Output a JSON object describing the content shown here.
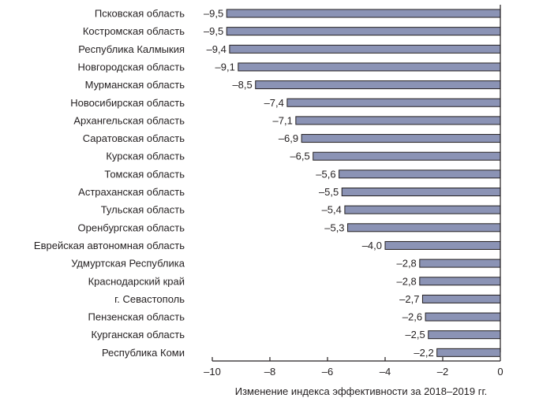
{
  "chart_data": {
    "type": "bar",
    "orientation": "horizontal",
    "categories": [
      "Псковская область",
      "Костромская область",
      "Республика Калмыкия",
      "Новгородская область",
      "Мурманская область",
      "Новосибирская область",
      "Архангельская область",
      "Саратовская область",
      "Курская область",
      "Томская область",
      "Астраханская область",
      "Тульская область",
      "Оренбургская область",
      "Еврейская автономная область",
      "Удмуртская Республика",
      "Краснодарский край",
      "г. Севастополь",
      "Пензенская область",
      "Курганская область",
      "Республика Коми"
    ],
    "values": [
      -9.5,
      -9.5,
      -9.4,
      -9.1,
      -8.5,
      -7.4,
      -7.1,
      -6.9,
      -6.5,
      -5.6,
      -5.5,
      -5.4,
      -5.3,
      -4.0,
      -2.8,
      -2.8,
      -2.7,
      -2.6,
      -2.5,
      -2.2
    ],
    "value_labels": [
      "–9,5",
      "–9,5",
      "–9,4",
      "–9,1",
      "–8,5",
      "–7,4",
      "–7,1",
      "–6,9",
      "–6,5",
      "–5,6",
      "–5,5",
      "–5,4",
      "–5,3",
      "–4,0",
      "–2,8",
      "–2,8",
      "–2,7",
      "–2,6",
      "–2,5",
      "–2,2"
    ],
    "xlabel": "Изменение индекса эффективности за 2018–2019 гг.",
    "xlim": [
      -10,
      0
    ],
    "xticks": [
      -10,
      -8,
      -6,
      -4,
      -2,
      0
    ],
    "xtick_labels": [
      "–10",
      "–8",
      "–6",
      "–4",
      "–2",
      "0"
    ],
    "grid": false,
    "colors": {
      "bar_fill": "#8b93b5",
      "bar_stroke": "#231f20",
      "axis": "#231f20",
      "text": "#231f20"
    }
  }
}
